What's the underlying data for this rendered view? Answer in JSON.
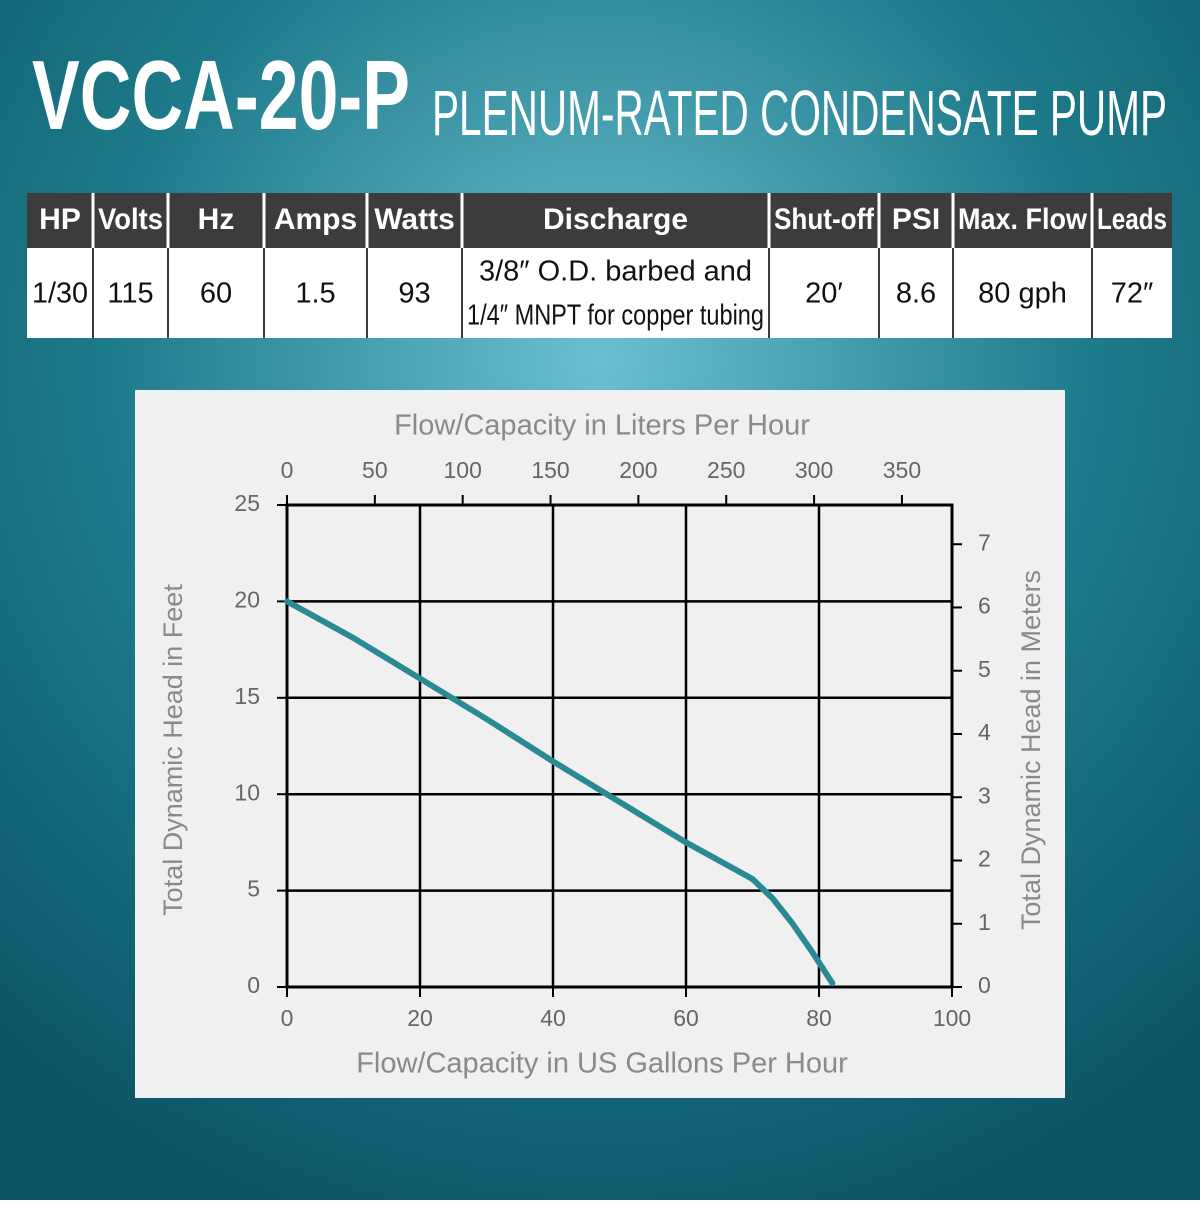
{
  "header": {
    "title": "VCCA-20-P",
    "subtitle": "PLENUM-RATED CONDENSATE PUMP"
  },
  "table": {
    "headers": [
      "HP",
      "Volts",
      "Hz",
      "Amps",
      "Watts",
      "Discharge",
      "Shut-off",
      "PSI",
      "Max. Flow",
      "Leads"
    ],
    "rows": [
      [
        "1/30",
        "115",
        "60",
        "1.5",
        "93",
        [
          "3/8″ O.D. barbed and",
          "1/4″ MNPT for copper tubing"
        ],
        "20′",
        "8.6",
        "80 gph",
        "72″"
      ]
    ]
  },
  "chart_data": {
    "type": "line",
    "xlabel": "Flow/Capacity in US Gallons Per Hour",
    "x2label": "Flow/Capacity in Liters Per Hour",
    "ylabel": "Total Dynamic Head in Feet",
    "y2label": "Total Dynamic Head in Meters",
    "x": [
      0,
      10,
      20,
      30,
      40,
      50,
      60,
      70,
      73,
      76,
      79,
      82
    ],
    "values": [
      20,
      18.1,
      16,
      13.9,
      11.7,
      9.6,
      7.5,
      5.6,
      4.6,
      3.3,
      1.8,
      0.2
    ],
    "color": "#2a8a94",
    "xlim": [
      0,
      100
    ],
    "xticks": [
      0,
      20,
      40,
      60,
      80,
      100
    ],
    "x2lim": [
      0,
      378.5
    ],
    "x2ticks": [
      0,
      50,
      100,
      150,
      200,
      250,
      300,
      350
    ],
    "ylim": [
      0,
      25
    ],
    "yticks": [
      0,
      5,
      10,
      15,
      20,
      25
    ],
    "y2lim": [
      0,
      7.62
    ],
    "y2ticks": [
      0,
      1,
      2,
      3,
      4,
      5,
      6,
      7
    ],
    "grid": true
  }
}
